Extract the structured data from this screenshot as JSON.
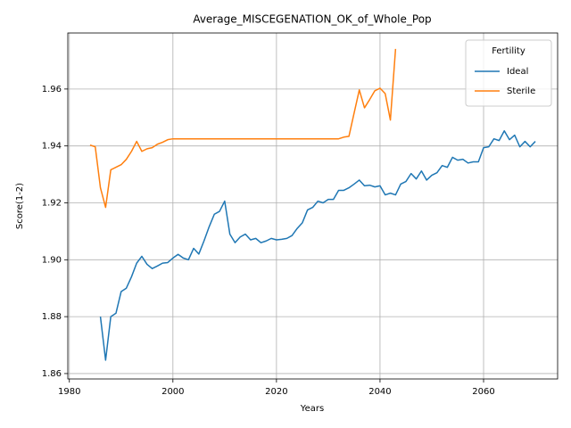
{
  "chart_data": {
    "type": "line",
    "title": "Average_MISCEGENATION_OK_of_Whole_Pop",
    "x_label": "Years",
    "y_label": "Score(1-2)",
    "legend_title": "Fertility",
    "legend_position": "upper right",
    "grid": true,
    "x": [
      1984,
      1985,
      1986,
      1987,
      1988,
      1989,
      1990,
      1991,
      1992,
      1993,
      1994,
      1995,
      1996,
      1997,
      1998,
      1999,
      2000,
      2001,
      2002,
      2003,
      2004,
      2005,
      2006,
      2007,
      2008,
      2009,
      2010,
      2011,
      2012,
      2013,
      2014,
      2015,
      2016,
      2017,
      2018,
      2019,
      2020,
      2021,
      2022,
      2023,
      2024,
      2025,
      2026,
      2027,
      2028,
      2029,
      2030,
      2031,
      2032,
      2033,
      2034,
      2035,
      2036,
      2037,
      2038,
      2039,
      2040,
      2041,
      2042,
      2043,
      2044,
      2045,
      2046,
      2047,
      2048,
      2049,
      2050,
      2051,
      2052,
      2053,
      2054,
      2055,
      2056,
      2057,
      2058,
      2059,
      2060,
      2061,
      2062,
      2063,
      2064,
      2065,
      2066,
      2067,
      2068,
      2069,
      2070
    ],
    "series": [
      {
        "name": "Ideal",
        "color": "#1f77b4",
        "values": [
          null,
          null,
          1.88,
          1.8647,
          1.88,
          1.8812,
          1.8888,
          1.89,
          1.894,
          1.8988,
          1.9012,
          1.8984,
          1.8969,
          1.8978,
          1.8988,
          1.899,
          1.9006,
          1.9019,
          1.9006,
          1.9,
          1.904,
          1.902,
          1.9066,
          1.9116,
          1.916,
          1.917,
          1.9206,
          1.909,
          1.906,
          1.908,
          1.909,
          1.907,
          1.9075,
          1.906,
          1.9066,
          1.9075,
          1.907,
          1.9072,
          1.9075,
          1.9085,
          1.911,
          1.913,
          1.9175,
          1.9184,
          1.9206,
          1.92,
          1.9212,
          1.9212,
          1.9244,
          1.9244,
          1.9253,
          1.9266,
          1.928,
          1.926,
          1.9262,
          1.9256,
          1.926,
          1.9228,
          1.9234,
          1.9228,
          1.9266,
          1.9275,
          1.9303,
          1.9284,
          1.9312,
          1.928,
          1.9297,
          1.9306,
          1.9331,
          1.9325,
          1.936,
          1.935,
          1.9353,
          1.934,
          1.9344,
          1.9344,
          1.9394,
          1.9397,
          1.9425,
          1.9419,
          1.9453,
          1.9422,
          1.9438,
          1.9397,
          1.9416,
          1.9397,
          1.9416
        ]
      },
      {
        "name": "Sterile",
        "color": "#ff7f0e",
        "values": [
          1.9403,
          1.9397,
          1.9253,
          1.9184,
          1.9316,
          1.9325,
          1.9334,
          1.9353,
          1.9381,
          1.9416,
          1.9381,
          1.939,
          1.9394,
          1.9406,
          1.9413,
          1.9422,
          1.9425,
          1.9425,
          1.9425,
          1.9425,
          1.9425,
          1.9425,
          1.9425,
          1.9425,
          1.9425,
          1.9425,
          1.9425,
          1.9425,
          1.9425,
          1.9425,
          1.9425,
          1.9425,
          1.9425,
          1.9425,
          1.9425,
          1.9425,
          1.9425,
          1.9425,
          1.9425,
          1.9425,
          1.9425,
          1.9425,
          1.9425,
          1.9425,
          1.9425,
          1.9425,
          1.9425,
          1.9425,
          1.9425,
          1.9431,
          1.9434,
          1.9516,
          1.9597,
          1.9534,
          1.9563,
          1.9594,
          1.9603,
          1.9584,
          1.9491,
          1.9741,
          null,
          null,
          null,
          null,
          null,
          null,
          null,
          null,
          null,
          null,
          null,
          null,
          null,
          null,
          null,
          null,
          null,
          null,
          null,
          null,
          null,
          null,
          null,
          null,
          null,
          null,
          null
        ]
      }
    ],
    "xlim": [
      1979.7,
      2074.3
    ],
    "xticks": [
      1980,
      2000,
      2020,
      2040,
      2060
    ],
    "ylim": [
      1.8581,
      1.9797
    ],
    "yticks": [
      1.86,
      1.88,
      {
        "value": 1.9,
        "label": "1.90"
      },
      1.92,
      1.94,
      1.96
    ]
  }
}
